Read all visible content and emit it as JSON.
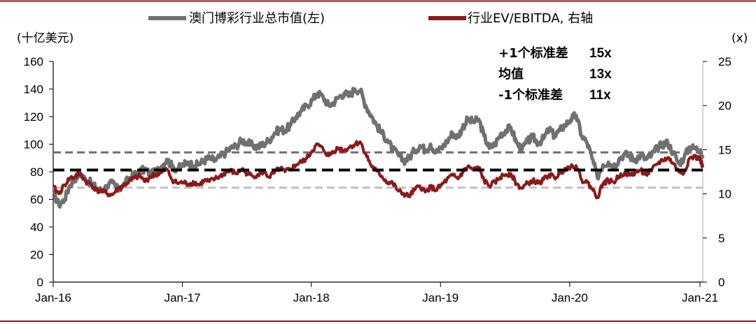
{
  "chart_data": {
    "type": "line",
    "legend": {
      "series1": "澳门博彩行业总市值(左)",
      "series2": "行业EV/EBITDA, 右轴",
      "placement": "top"
    },
    "left_axis": {
      "unit_label": "(十亿美元)",
      "ylim": [
        0,
        160
      ],
      "ticks": [
        "0",
        "20",
        "40",
        "60",
        "80",
        "100",
        "120",
        "140",
        "160"
      ]
    },
    "right_axis": {
      "unit_label": "(x)",
      "ylim": [
        0,
        25
      ],
      "ticks": [
        "0",
        "5",
        "10",
        "15",
        "20",
        "25"
      ]
    },
    "x_axis": {
      "ticks": [
        "Jan-16",
        "Jan-17",
        "Jan-18",
        "Jan-19",
        "Jan-20",
        "Jan-21"
      ],
      "range": [
        "2016-01",
        "2021-01"
      ]
    },
    "annotations": [
      {
        "label": "+1个标准差",
        "value": "15x"
      },
      {
        "label": "均值",
        "value": "13x"
      },
      {
        "label": "-1个标准差",
        "value": "11x"
      }
    ],
    "reference_lines": {
      "plus1_sd": 14.7,
      "mean": 12.7,
      "minus1_sd": 10.7
    },
    "colors": {
      "series1": "#707070",
      "series2": "#8b1a1a",
      "plus1_sd": "#6e6e6e",
      "mean": "#000000",
      "minus1_sd": "#c0c0c0",
      "frame": "#8b1a1a"
    },
    "series": [
      {
        "name": "澳门博彩行业总市值(左)",
        "axis": "left",
        "points": [
          [
            "2016-01-04",
            65
          ],
          [
            "2016-01-20",
            56
          ],
          [
            "2016-02-05",
            60
          ],
          [
            "2016-02-20",
            70
          ],
          [
            "2016-03-05",
            75
          ],
          [
            "2016-03-20",
            79
          ],
          [
            "2016-04-05",
            74
          ],
          [
            "2016-04-20",
            72
          ],
          [
            "2016-05-05",
            68
          ],
          [
            "2016-05-20",
            66
          ],
          [
            "2016-06-05",
            70
          ],
          [
            "2016-06-20",
            72
          ],
          [
            "2016-07-05",
            67
          ],
          [
            "2016-07-20",
            70
          ],
          [
            "2016-08-05",
            75
          ],
          [
            "2016-08-20",
            78
          ],
          [
            "2016-09-05",
            80
          ],
          [
            "2016-09-20",
            82
          ],
          [
            "2016-10-05",
            78
          ],
          [
            "2016-10-20",
            80
          ],
          [
            "2016-11-05",
            84
          ],
          [
            "2016-11-20",
            89
          ],
          [
            "2016-12-05",
            84
          ],
          [
            "2016-12-20",
            82
          ],
          [
            "2017-01-05",
            85
          ],
          [
            "2017-01-20",
            87
          ],
          [
            "2017-02-05",
            84
          ],
          [
            "2017-02-20",
            86
          ],
          [
            "2017-03-05",
            88
          ],
          [
            "2017-03-20",
            90
          ],
          [
            "2017-04-05",
            88
          ],
          [
            "2017-04-20",
            91
          ],
          [
            "2017-05-05",
            94
          ],
          [
            "2017-05-20",
            97
          ],
          [
            "2017-06-05",
            99
          ],
          [
            "2017-06-20",
            103
          ],
          [
            "2017-07-05",
            101
          ],
          [
            "2017-07-20",
            99
          ],
          [
            "2017-08-05",
            98
          ],
          [
            "2017-08-20",
            100
          ],
          [
            "2017-09-05",
            103
          ],
          [
            "2017-09-20",
            108
          ],
          [
            "2017-10-05",
            111
          ],
          [
            "2017-10-20",
            110
          ],
          [
            "2017-11-05",
            114
          ],
          [
            "2017-11-20",
            120
          ],
          [
            "2017-12-05",
            124
          ],
          [
            "2017-12-20",
            128
          ],
          [
            "2018-01-05",
            132
          ],
          [
            "2018-01-20",
            137
          ],
          [
            "2018-02-05",
            134
          ],
          [
            "2018-02-20",
            128
          ],
          [
            "2018-03-05",
            130
          ],
          [
            "2018-03-20",
            134
          ],
          [
            "2018-04-05",
            137
          ],
          [
            "2018-04-20",
            135
          ],
          [
            "2018-05-05",
            140
          ],
          [
            "2018-05-20",
            139
          ],
          [
            "2018-06-05",
            128
          ],
          [
            "2018-06-20",
            121
          ],
          [
            "2018-07-05",
            114
          ],
          [
            "2018-07-20",
            108
          ],
          [
            "2018-08-05",
            103
          ],
          [
            "2018-08-20",
            96
          ],
          [
            "2018-09-05",
            92
          ],
          [
            "2018-09-20",
            88
          ],
          [
            "2018-10-05",
            90
          ],
          [
            "2018-10-20",
            95
          ],
          [
            "2018-11-05",
            99
          ],
          [
            "2018-11-20",
            96
          ],
          [
            "2018-12-05",
            100
          ],
          [
            "2018-12-20",
            94
          ],
          [
            "2019-01-05",
            97
          ],
          [
            "2019-01-20",
            102
          ],
          [
            "2019-02-05",
            108
          ],
          [
            "2019-02-20",
            105
          ],
          [
            "2019-03-05",
            112
          ],
          [
            "2019-03-20",
            118
          ],
          [
            "2019-04-05",
            116
          ],
          [
            "2019-04-20",
            118
          ],
          [
            "2019-05-05",
            106
          ],
          [
            "2019-05-20",
            97
          ],
          [
            "2019-06-05",
            100
          ],
          [
            "2019-06-20",
            107
          ],
          [
            "2019-07-05",
            110
          ],
          [
            "2019-07-20",
            112
          ],
          [
            "2019-08-05",
            101
          ],
          [
            "2019-08-20",
            96
          ],
          [
            "2019-09-05",
            102
          ],
          [
            "2019-09-20",
            105
          ],
          [
            "2019-10-05",
            101
          ],
          [
            "2019-10-20",
            104
          ],
          [
            "2019-11-05",
            111
          ],
          [
            "2019-11-20",
            106
          ],
          [
            "2019-12-05",
            110
          ],
          [
            "2019-12-20",
            114
          ],
          [
            "2020-01-05",
            118
          ],
          [
            "2020-01-20",
            121
          ],
          [
            "2020-02-05",
            106
          ],
          [
            "2020-02-20",
            101
          ],
          [
            "2020-03-05",
            90
          ],
          [
            "2020-03-20",
            76
          ],
          [
            "2020-04-05",
            85
          ],
          [
            "2020-04-20",
            87
          ],
          [
            "2020-05-05",
            84
          ],
          [
            "2020-05-20",
            89
          ],
          [
            "2020-06-05",
            93
          ],
          [
            "2020-06-20",
            91
          ],
          [
            "2020-07-05",
            89
          ],
          [
            "2020-07-20",
            92
          ],
          [
            "2020-08-05",
            89
          ],
          [
            "2020-08-20",
            92
          ],
          [
            "2020-09-05",
            97
          ],
          [
            "2020-09-20",
            100
          ],
          [
            "2020-10-05",
            101
          ],
          [
            "2020-10-20",
            94
          ],
          [
            "2020-11-05",
            86
          ],
          [
            "2020-11-20",
            90
          ],
          [
            "2020-12-05",
            98
          ],
          [
            "2020-12-20",
            97
          ],
          [
            "2021-01-05",
            96
          ],
          [
            "2021-01-12",
            90
          ]
        ]
      },
      {
        "name": "行业EV/EBITDA, 右轴",
        "axis": "right",
        "points": [
          [
            "2016-01-04",
            10.8
          ],
          [
            "2016-01-20",
            10.0
          ],
          [
            "2016-02-05",
            11.0
          ],
          [
            "2016-02-20",
            11.8
          ],
          [
            "2016-03-05",
            11.9
          ],
          [
            "2016-03-20",
            12.3
          ],
          [
            "2016-04-05",
            11.4
          ],
          [
            "2016-04-20",
            11.1
          ],
          [
            "2016-05-05",
            10.4
          ],
          [
            "2016-05-20",
            10.3
          ],
          [
            "2016-06-05",
            10.0
          ],
          [
            "2016-06-20",
            9.9
          ],
          [
            "2016-07-05",
            10.6
          ],
          [
            "2016-07-20",
            10.9
          ],
          [
            "2016-08-05",
            11.4
          ],
          [
            "2016-08-20",
            11.8
          ],
          [
            "2016-09-05",
            12.0
          ],
          [
            "2016-09-20",
            11.4
          ],
          [
            "2016-10-05",
            12.0
          ],
          [
            "2016-10-20",
            12.2
          ],
          [
            "2016-11-05",
            12.4
          ],
          [
            "2016-11-20",
            12.8
          ],
          [
            "2016-12-05",
            11.6
          ],
          [
            "2016-12-20",
            11.2
          ],
          [
            "2017-01-05",
            11.3
          ],
          [
            "2017-01-20",
            11.1
          ],
          [
            "2017-02-05",
            11.3
          ],
          [
            "2017-02-20",
            11.0
          ],
          [
            "2017-03-05",
            11.5
          ],
          [
            "2017-03-20",
            11.4
          ],
          [
            "2017-04-05",
            11.7
          ],
          [
            "2017-04-20",
            12.0
          ],
          [
            "2017-05-05",
            12.4
          ],
          [
            "2017-05-20",
            12.6
          ],
          [
            "2017-06-05",
            12.3
          ],
          [
            "2017-06-20",
            12.8
          ],
          [
            "2017-07-05",
            12.3
          ],
          [
            "2017-07-20",
            12.0
          ],
          [
            "2017-08-05",
            12.2
          ],
          [
            "2017-08-20",
            12.5
          ],
          [
            "2017-09-05",
            11.9
          ],
          [
            "2017-09-20",
            12.4
          ],
          [
            "2017-10-05",
            12.9
          ],
          [
            "2017-10-20",
            12.5
          ],
          [
            "2017-11-05",
            12.8
          ],
          [
            "2017-11-20",
            13.3
          ],
          [
            "2017-12-05",
            13.6
          ],
          [
            "2017-12-20",
            14.0
          ],
          [
            "2018-01-05",
            14.9
          ],
          [
            "2018-01-20",
            15.6
          ],
          [
            "2018-02-05",
            15.0
          ],
          [
            "2018-02-20",
            14.3
          ],
          [
            "2018-03-05",
            14.8
          ],
          [
            "2018-03-20",
            15.2
          ],
          [
            "2018-04-05",
            14.9
          ],
          [
            "2018-04-20",
            15.3
          ],
          [
            "2018-05-05",
            15.6
          ],
          [
            "2018-05-20",
            15.9
          ],
          [
            "2018-06-05",
            14.5
          ],
          [
            "2018-06-20",
            13.2
          ],
          [
            "2018-07-05",
            12.6
          ],
          [
            "2018-07-20",
            12.0
          ],
          [
            "2018-08-05",
            11.3
          ],
          [
            "2018-08-20",
            11.2
          ],
          [
            "2018-09-05",
            10.3
          ],
          [
            "2018-09-20",
            10.0
          ],
          [
            "2018-10-05",
            9.7
          ],
          [
            "2018-10-20",
            10.4
          ],
          [
            "2018-11-05",
            10.9
          ],
          [
            "2018-11-20",
            10.2
          ],
          [
            "2018-12-05",
            10.8
          ],
          [
            "2018-12-20",
            10.4
          ],
          [
            "2019-01-05",
            11.0
          ],
          [
            "2019-01-20",
            11.6
          ],
          [
            "2019-02-05",
            12.1
          ],
          [
            "2019-02-20",
            11.7
          ],
          [
            "2019-03-05",
            12.4
          ],
          [
            "2019-03-20",
            13.1
          ],
          [
            "2019-04-05",
            12.7
          ],
          [
            "2019-04-20",
            13.0
          ],
          [
            "2019-05-05",
            11.5
          ],
          [
            "2019-05-20",
            10.9
          ],
          [
            "2019-06-05",
            11.3
          ],
          [
            "2019-06-20",
            11.9
          ],
          [
            "2019-07-05",
            12.2
          ],
          [
            "2019-07-20",
            12.3
          ],
          [
            "2019-08-05",
            11.1
          ],
          [
            "2019-08-20",
            10.6
          ],
          [
            "2019-09-05",
            11.2
          ],
          [
            "2019-09-20",
            11.5
          ],
          [
            "2019-10-05",
            11.2
          ],
          [
            "2019-10-20",
            11.6
          ],
          [
            "2019-11-05",
            12.2
          ],
          [
            "2019-11-20",
            11.8
          ],
          [
            "2019-12-05",
            12.3
          ],
          [
            "2019-12-20",
            12.9
          ],
          [
            "2020-01-05",
            13.1
          ],
          [
            "2020-01-20",
            13.2
          ],
          [
            "2020-02-05",
            11.6
          ],
          [
            "2020-02-20",
            11.3
          ],
          [
            "2020-03-05",
            10.6
          ],
          [
            "2020-03-20",
            9.6
          ],
          [
            "2020-04-05",
            11.2
          ],
          [
            "2020-04-20",
            11.5
          ],
          [
            "2020-05-05",
            11.3
          ],
          [
            "2020-05-20",
            12.0
          ],
          [
            "2020-06-05",
            12.4
          ],
          [
            "2020-06-20",
            12.1
          ],
          [
            "2020-07-05",
            12.4
          ],
          [
            "2020-07-20",
            12.7
          ],
          [
            "2020-08-05",
            12.2
          ],
          [
            "2020-08-20",
            12.6
          ],
          [
            "2020-09-05",
            13.4
          ],
          [
            "2020-09-20",
            13.8
          ],
          [
            "2020-10-05",
            14.1
          ],
          [
            "2020-10-20",
            13.5
          ],
          [
            "2020-11-05",
            12.5
          ],
          [
            "2020-11-20",
            12.4
          ],
          [
            "2020-12-05",
            14.0
          ],
          [
            "2020-12-20",
            14.2
          ],
          [
            "2021-01-05",
            13.9
          ],
          [
            "2021-01-12",
            13.0
          ]
        ]
      }
    ]
  }
}
